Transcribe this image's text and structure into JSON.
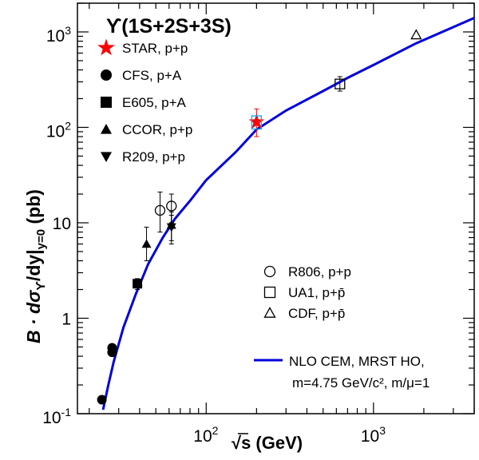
{
  "chart_data": {
    "type": "scatter",
    "title": "ϒ(1S+2S+3S)",
    "xlabel": "√s (GeV)",
    "ylabel_parts": {
      "main": "B · dσ",
      "sub1": "ϒ",
      "mid": "/dy|",
      "sub2": "y=0",
      "unit": " (pb)"
    },
    "xscale": "log",
    "yscale": "log",
    "xlim": [
      17,
      4000
    ],
    "ylim": [
      0.1,
      2000
    ],
    "x_ticks": [
      {
        "value": 100,
        "base": "10",
        "exp": "2"
      },
      {
        "value": 1000,
        "base": "10",
        "exp": "3"
      }
    ],
    "y_ticks": [
      {
        "value": 0.1,
        "base": "10",
        "exp": "-1"
      },
      {
        "value": 1,
        "base": "1",
        "exp": ""
      },
      {
        "value": 10,
        "base": "10",
        "exp": ""
      },
      {
        "value": 100,
        "base": "10",
        "exp": "2"
      },
      {
        "value": 1000,
        "base": "10",
        "exp": "3"
      }
    ],
    "curve": {
      "name": "NLO CEM, MRST HO,",
      "name2": "m=4.75 GeV/c², m/μ=1",
      "color": "#0000dd",
      "points": [
        [
          24.2,
          0.11
        ],
        [
          26,
          0.2
        ],
        [
          28,
          0.35
        ],
        [
          32,
          0.8
        ],
        [
          38,
          1.8
        ],
        [
          45,
          3.7
        ],
        [
          55,
          7
        ],
        [
          65,
          11
        ],
        [
          80,
          17
        ],
        [
          100,
          28
        ],
        [
          150,
          55
        ],
        [
          200,
          95
        ],
        [
          300,
          150
        ],
        [
          500,
          240
        ],
        [
          700,
          330
        ],
        [
          1000,
          450
        ],
        [
          1800,
          760
        ],
        [
          4000,
          1400
        ]
      ]
    },
    "series": [
      {
        "name": "STAR, p+p",
        "marker": "star",
        "color": "#ff0000",
        "points": [
          {
            "x": 200,
            "y": 114,
            "err": [
              80,
              156
            ]
          }
        ]
      },
      {
        "name": "CFS, p+A",
        "marker": "circle",
        "color": "#000000",
        "points": [
          {
            "x": 23.8,
            "y": 0.14,
            "err": null
          },
          {
            "x": 27.4,
            "y": 0.44,
            "err": null
          },
          {
            "x": 27.4,
            "y": 0.49,
            "err": null
          }
        ]
      },
      {
        "name": "E605, p+A",
        "marker": "square",
        "color": "#000000",
        "points": [
          {
            "x": 38.8,
            "y": 2.3,
            "err": [
              2.0,
              2.6
            ]
          }
        ]
      },
      {
        "name": "CCOR, p+p",
        "marker": "triangle-up",
        "color": "#000000",
        "points": [
          {
            "x": 44,
            "y": 6,
            "err": [
              4,
              9
            ]
          },
          {
            "x": 62,
            "y": 9.5,
            "err": [
              6.5,
              13
            ]
          }
        ]
      },
      {
        "name": "R209, p+p",
        "marker": "triangle-down",
        "color": "#000000",
        "points": [
          {
            "x": 62,
            "y": 9,
            "err": [
              6,
              12
            ]
          }
        ]
      },
      {
        "name": "R806, p+p",
        "marker": "circle-open",
        "color": "#000000",
        "points": [
          {
            "x": 53,
            "y": 13.5,
            "err": [
              8,
              21
            ]
          },
          {
            "x": 62,
            "y": 15,
            "err": [
              10,
              20
            ]
          }
        ]
      },
      {
        "name": "UA1, p+p̄",
        "marker": "square-open",
        "color": "#000000",
        "points": [
          {
            "x": 630,
            "y": 285,
            "err": [
              240,
              340
            ]
          }
        ]
      },
      {
        "name": "CDF, p+p̄",
        "marker": "triangle-open",
        "color": "#000000",
        "points": [
          {
            "x": 1800,
            "y": 930,
            "err": null
          }
        ]
      },
      {
        "name": "STAR syst",
        "marker": "box-syst",
        "color": "#00aaff",
        "points": [
          {
            "x": 200,
            "y": 114,
            "err": [
              96,
              132
            ]
          }
        ]
      }
    ],
    "legend_top": [
      "STAR, p+p",
      "CFS, p+A",
      "E605, p+A",
      "CCOR, p+p",
      "R209, p+p"
    ],
    "legend_bottom": [
      "R806, p+p",
      "UA1, p+p̄",
      "CDF, p+p̄"
    ]
  }
}
